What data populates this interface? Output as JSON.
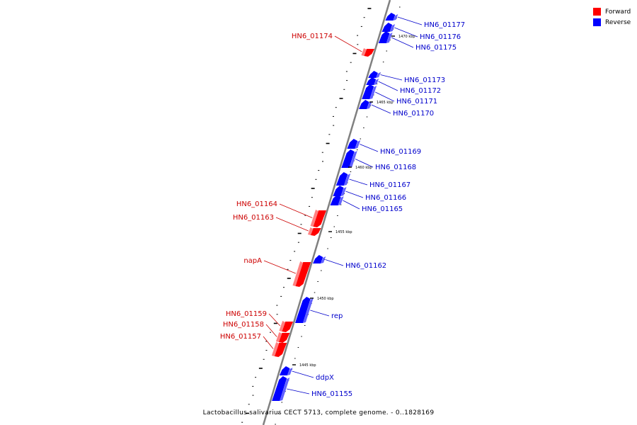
{
  "colors": {
    "forward": "#ff0000",
    "reverse": "#0000ff",
    "forward_text": "#cc0000",
    "reverse_text": "#0000cc",
    "backbone": "#808080"
  },
  "legend": {
    "forward_label": "Forward",
    "reverse_label": "Reverse"
  },
  "caption": "Lactobacillus salivarius CECT 5713, complete genome. - 0..1828169",
  "scale_labels": [
    "1470 kbp",
    "1465 kbp",
    "1460 kbp",
    "1455 kbp",
    "1450 kbp",
    "1445 kbp"
  ],
  "genes": [
    {
      "name": "HN6_01177",
      "strand": "reverse"
    },
    {
      "name": "HN6_01176",
      "strand": "reverse"
    },
    {
      "name": "HN6_01175",
      "strand": "reverse"
    },
    {
      "name": "HN6_01174",
      "strand": "forward"
    },
    {
      "name": "HN6_01173",
      "strand": "reverse"
    },
    {
      "name": "HN6_01172",
      "strand": "reverse"
    },
    {
      "name": "HN6_01171",
      "strand": "reverse"
    },
    {
      "name": "HN6_01170",
      "strand": "reverse"
    },
    {
      "name": "HN6_01169",
      "strand": "reverse"
    },
    {
      "name": "HN6_01168",
      "strand": "reverse"
    },
    {
      "name": "HN6_01167",
      "strand": "reverse"
    },
    {
      "name": "HN6_01166",
      "strand": "reverse"
    },
    {
      "name": "HN6_01165",
      "strand": "reverse"
    },
    {
      "name": "HN6_01164",
      "strand": "forward"
    },
    {
      "name": "HN6_01163",
      "strand": "forward"
    },
    {
      "name": "HN6_01162",
      "strand": "reverse"
    },
    {
      "name": "napA",
      "strand": "forward"
    },
    {
      "name": "rep",
      "strand": "reverse"
    },
    {
      "name": "HN6_01159",
      "strand": "forward"
    },
    {
      "name": "HN6_01158",
      "strand": "forward"
    },
    {
      "name": "HN6_01157",
      "strand": "forward"
    },
    {
      "name": "ddpX",
      "strand": "reverse"
    },
    {
      "name": "HN6_01155",
      "strand": "reverse"
    }
  ]
}
